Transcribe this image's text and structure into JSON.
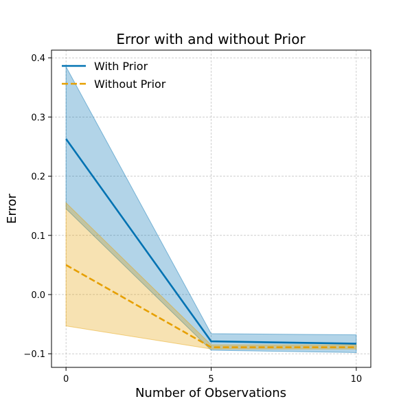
{
  "chart_data": {
    "type": "line",
    "title": "Error with and without Prior",
    "xlabel": "Number of Observations",
    "ylabel": "Error",
    "x": [
      0,
      5,
      10
    ],
    "xticks": [
      0,
      5,
      10
    ],
    "yticks": [
      -0.1,
      0.0,
      0.1,
      0.2,
      0.3,
      0.4
    ],
    "ytick_labels": [
      "−0.1",
      "0.0",
      "0.1",
      "0.2",
      "0.3",
      "0.4"
    ],
    "xticks_labels": [
      "0",
      "5",
      "10"
    ],
    "xlim": [
      -0.5,
      10.5
    ],
    "ylim": [
      -0.123,
      0.413
    ],
    "grid": true,
    "legend_position": "top-left",
    "series": [
      {
        "name": "With Prior",
        "color": "#0072b2",
        "line_style": "solid",
        "values": [
          0.263,
          -0.079,
          -0.083
        ],
        "band_lower": [
          0.145,
          -0.094,
          -0.098
        ],
        "band_upper": [
          0.385,
          -0.066,
          -0.068
        ]
      },
      {
        "name": "Without Prior",
        "color": "#e69f00",
        "line_style": "dashed",
        "values": [
          0.05,
          -0.089,
          -0.089
        ],
        "band_lower": [
          -0.053,
          -0.092,
          -0.092
        ],
        "band_upper": [
          0.155,
          -0.085,
          -0.085
        ]
      }
    ]
  }
}
